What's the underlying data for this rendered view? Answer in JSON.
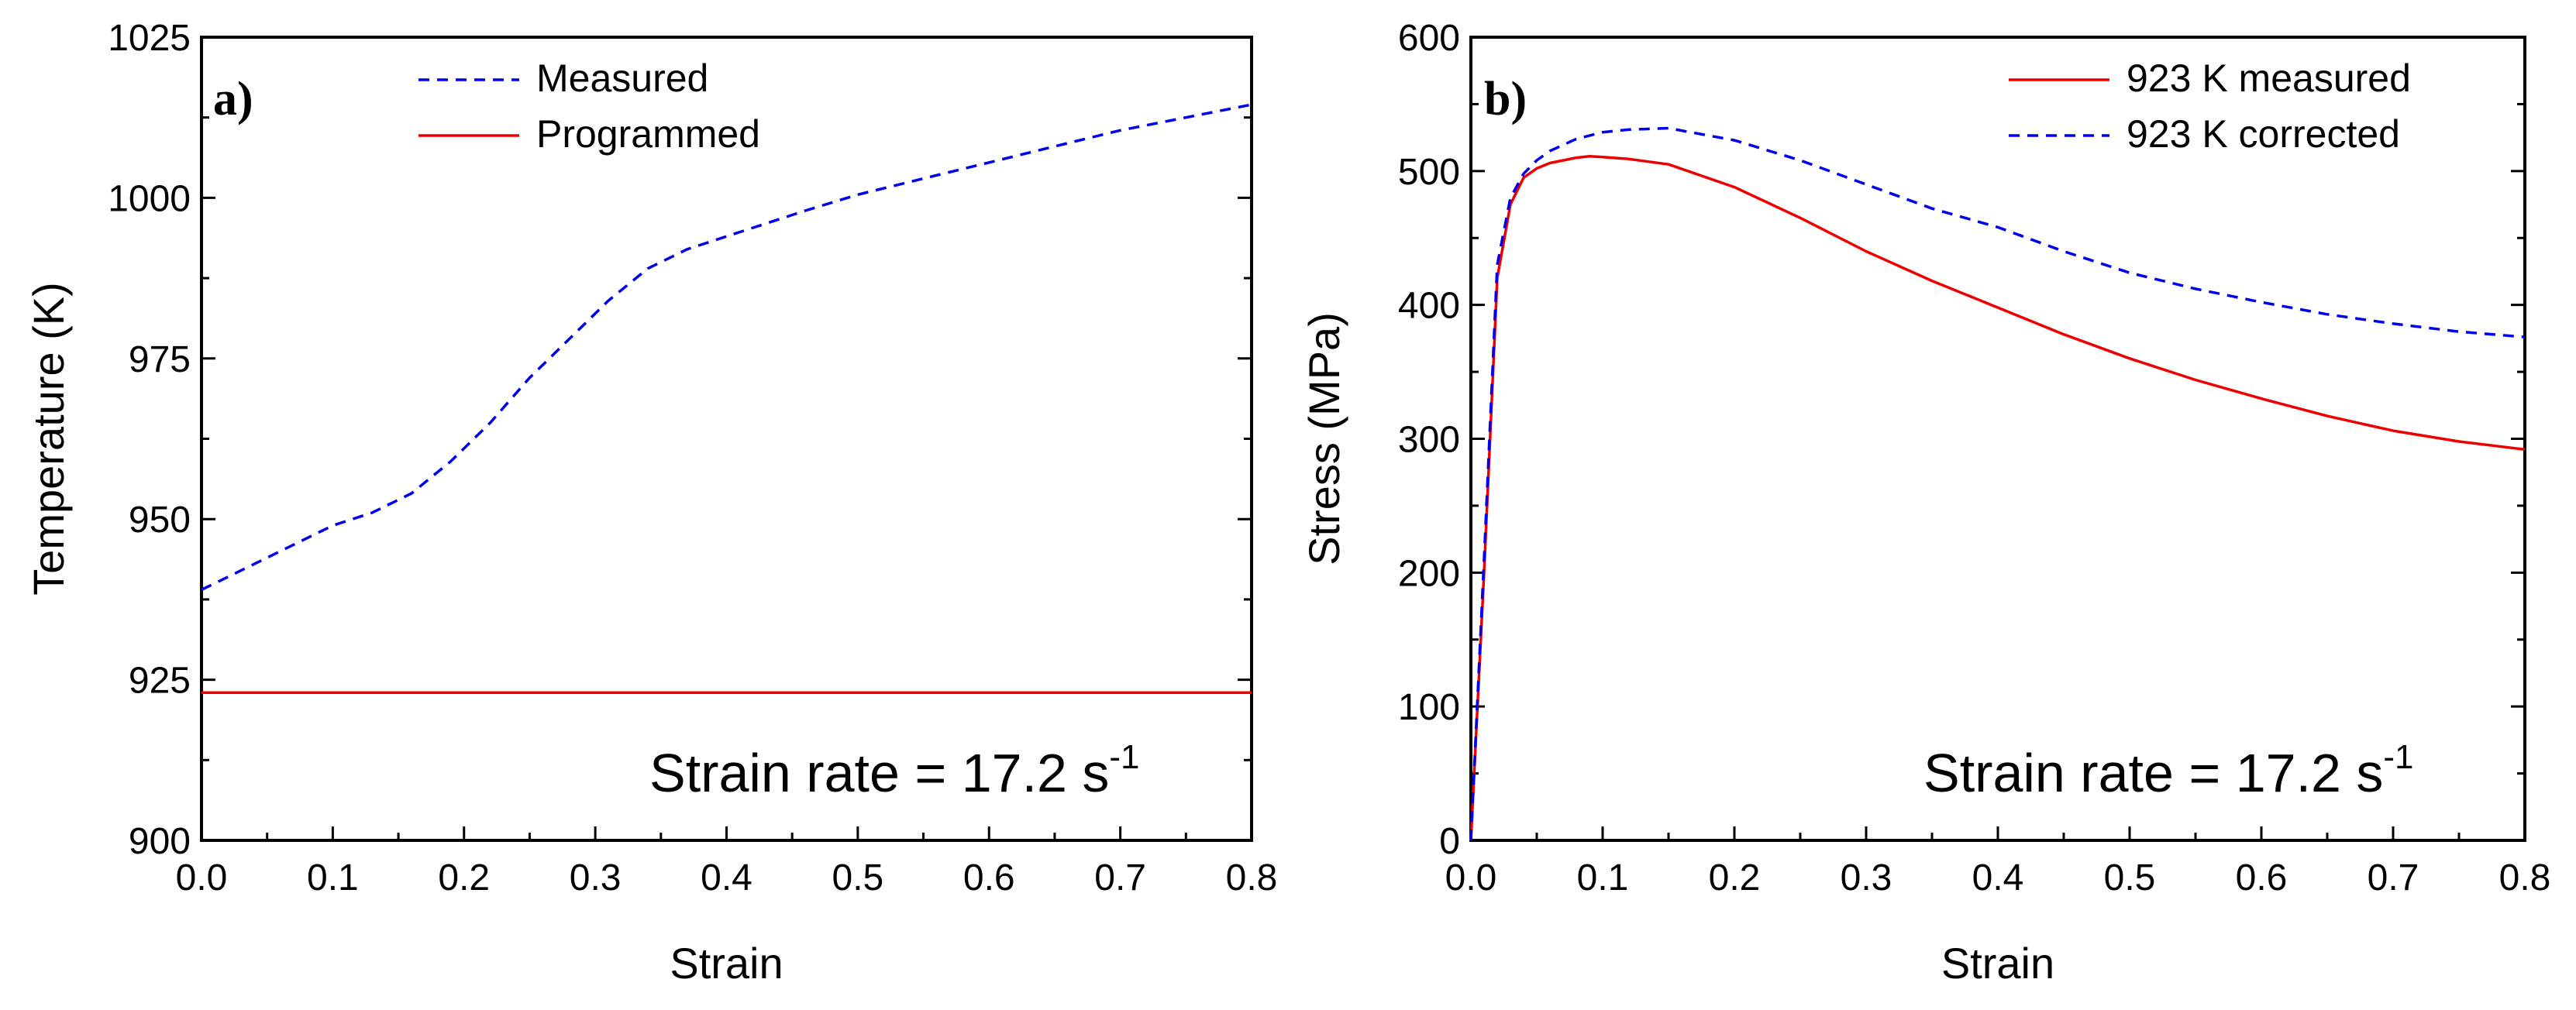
{
  "chart_data": [
    {
      "type": "line",
      "panel": "a)",
      "xlabel": "Strain",
      "ylabel": "Temperature (K)",
      "xlim": [
        0.0,
        0.8
      ],
      "ylim": [
        900,
        1025
      ],
      "xticks": [
        0.0,
        0.1,
        0.2,
        0.3,
        0.4,
        0.5,
        0.6,
        0.7,
        0.8
      ],
      "xtick_labels": [
        "0.0",
        "0.1",
        "0.2",
        "0.3",
        "0.4",
        "0.5",
        "0.6",
        "0.7",
        "0.8"
      ],
      "yticks": [
        900,
        925,
        950,
        975,
        1000,
        1025
      ],
      "ytick_labels": [
        "900",
        "925",
        "950",
        "975",
        "1000",
        "1025"
      ],
      "annotation": {
        "text": "Strain rate = 17.2 s",
        "superscript": "-1"
      },
      "legend_position": "top-left",
      "series": [
        {
          "name": "Measured",
          "color": "#0000ee",
          "style": "dashed",
          "x": [
            0.0,
            0.02,
            0.05,
            0.08,
            0.1,
            0.13,
            0.16,
            0.19,
            0.22,
            0.25,
            0.28,
            0.31,
            0.34,
            0.37,
            0.4,
            0.43,
            0.46,
            0.5,
            0.55,
            0.6,
            0.65,
            0.7,
            0.75,
            0.8
          ],
          "y": [
            939,
            941,
            944,
            947,
            949,
            951,
            954,
            959,
            965,
            972,
            978,
            984,
            989,
            992,
            994,
            996,
            998,
            1000.5,
            1003,
            1005.5,
            1008,
            1010.5,
            1012.5,
            1014.5
          ]
        },
        {
          "name": "Programmed",
          "color": "#ee0000",
          "style": "solid",
          "x": [
            0.0,
            0.8
          ],
          "y": [
            923,
            923
          ]
        }
      ]
    },
    {
      "type": "line",
      "panel": "b)",
      "xlabel": "Strain",
      "ylabel": "Stress (MPa)",
      "xlim": [
        0.0,
        0.8
      ],
      "ylim": [
        0,
        600
      ],
      "xticks": [
        0.0,
        0.1,
        0.2,
        0.3,
        0.4,
        0.5,
        0.6,
        0.7,
        0.8
      ],
      "xtick_labels": [
        "0.0",
        "0.1",
        "0.2",
        "0.3",
        "0.4",
        "0.5",
        "0.6",
        "0.7",
        "0.8"
      ],
      "yticks": [
        0,
        100,
        200,
        300,
        400,
        500,
        600
      ],
      "ytick_labels": [
        "0",
        "100",
        "200",
        "300",
        "400",
        "500",
        "600"
      ],
      "annotation": {
        "text": "Strain rate = 17.2 s",
        "superscript": "-1"
      },
      "legend_position": "top-right",
      "series": [
        {
          "name": "923 K measured",
          "color": "#ee0000",
          "style": "solid",
          "x": [
            0.0,
            0.005,
            0.01,
            0.02,
            0.03,
            0.04,
            0.05,
            0.06,
            0.08,
            0.09,
            0.1,
            0.12,
            0.15,
            0.2,
            0.25,
            0.3,
            0.35,
            0.4,
            0.45,
            0.5,
            0.55,
            0.6,
            0.65,
            0.7,
            0.75,
            0.8
          ],
          "y": [
            0,
            100,
            200,
            420,
            475,
            495,
            502,
            506,
            510,
            511,
            510.5,
            509,
            505,
            488,
            465,
            440,
            418,
            398,
            378,
            360,
            344,
            330,
            317,
            306,
            298,
            292
          ]
        },
        {
          "name": "923 K corrected",
          "color": "#0000ee",
          "style": "dashed",
          "x": [
            0.0,
            0.005,
            0.01,
            0.02,
            0.03,
            0.04,
            0.05,
            0.06,
            0.08,
            0.1,
            0.12,
            0.15,
            0.2,
            0.25,
            0.3,
            0.35,
            0.4,
            0.45,
            0.5,
            0.55,
            0.6,
            0.65,
            0.7,
            0.75,
            0.8
          ],
          "y": [
            0,
            105,
            210,
            430,
            480,
            498,
            508,
            515,
            524,
            529,
            531,
            532,
            523,
            508,
            490,
            472,
            458,
            440,
            424,
            412,
            402,
            393,
            386,
            380,
            376
          ]
        }
      ]
    }
  ]
}
